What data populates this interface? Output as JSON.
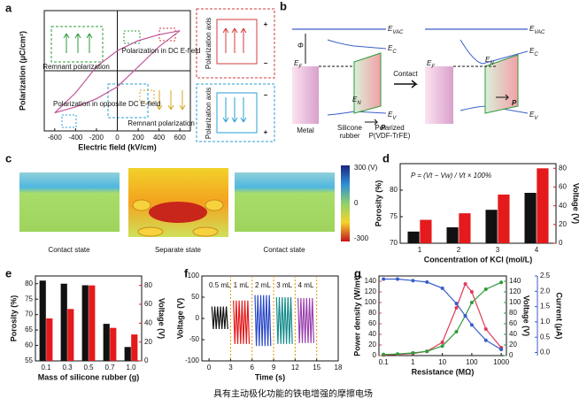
{
  "chart_data": [
    {
      "type": "line",
      "xlabel": "Electric field (kV/cm)",
      "ylabel": "Polarization (μC/cm²)",
      "xlim": [
        -700,
        700
      ],
      "ylim": [
        -1.5,
        1.5
      ],
      "xticks": [
        -600,
        -400,
        -200,
        0,
        200,
        400,
        600
      ],
      "series": [
        {
          "color": "#c0559a",
          "x": [
            -600,
            -400,
            -200,
            0,
            200,
            400,
            600,
            400,
            200,
            0,
            -200,
            -400,
            -600
          ],
          "values": [
            -1.05,
            -0.55,
            0.1,
            0.5,
            0.75,
            0.9,
            1.0,
            0.6,
            0.1,
            -0.4,
            -0.7,
            -0.9,
            -1.05
          ]
        }
      ],
      "annotations": [
        {
          "text": "Remnant polarization",
          "color": "#2e9b3a"
        },
        {
          "text": "Polarization in DC E-field",
          "color": "#d23c3c"
        },
        {
          "text": "Polarization in opposite DC E-field",
          "color": "#2a9fd6"
        },
        {
          "text": "Remnant polarization",
          "color": "#d4a520"
        }
      ]
    },
    {
      "type": "bar",
      "xlabel": "Concentration of KCl (mol/L)",
      "ylabel": "Porosity (%)",
      "y2label": "Voltage (V)",
      "annotation": "P = (Vt − Vw) / Vt × 100%",
      "categories": [
        "1",
        "2",
        "3",
        "4"
      ],
      "ylim": [
        70,
        85
      ],
      "yticks": [
        70,
        75,
        80
      ],
      "y2lim": [
        0,
        85
      ],
      "y2ticks": [
        0,
        20,
        40,
        60,
        80
      ],
      "series": [
        {
          "color": "#111111",
          "values": [
            72.2,
            73,
            76.3,
            79.5
          ]
        },
        {
          "color": "#e41a1c",
          "axis": "y2",
          "values": [
            25,
            32,
            52,
            80
          ]
        }
      ]
    },
    {
      "type": "bar",
      "xlabel": "Mass of silicone rubber (g)",
      "ylabel": "Porosity (%)",
      "y2label": "Voltage (V)",
      "categories": [
        "0.1",
        "0.3",
        "0.5",
        "0.7",
        "1.0"
      ],
      "ylim": [
        55,
        82.5
      ],
      "yticks": [
        55,
        60,
        65,
        70,
        75,
        80
      ],
      "y2lim": [
        0,
        90
      ],
      "y2ticks": [
        0,
        20,
        40,
        60,
        80
      ],
      "series": [
        {
          "color": "#111111",
          "values": [
            81,
            80,
            79.5,
            67,
            59.5
          ]
        },
        {
          "color": "#e41a1c",
          "axis": "y2",
          "values": [
            45,
            55,
            80,
            35,
            28
          ]
        }
      ]
    },
    {
      "type": "line",
      "xlabel": "Time (s)",
      "ylabel": "Voltage (V)",
      "xlim": [
        -1,
        18
      ],
      "ylim": [
        -100,
        100
      ],
      "xticks": [
        0,
        3,
        6,
        9,
        12,
        15,
        18
      ],
      "yticks": [
        -100,
        -50,
        0,
        50,
        100
      ],
      "label_color": "#e69500",
      "series": [
        {
          "name": "0.5 mL",
          "color": "#111111",
          "x": [
            0.4,
            0.6,
            0.8,
            1.0,
            1.2,
            1.4,
            1.6,
            1.8,
            2.0,
            2.2,
            2.4,
            2.6
          ],
          "values": [
            28,
            -25,
            28,
            -25,
            28,
            -25,
            28,
            -25,
            28,
            -25,
            28,
            -25
          ]
        },
        {
          "name": "1 mL",
          "color": "#e41a1c",
          "x": [
            3.4,
            3.6,
            3.8,
            4.0,
            4.2,
            4.4,
            4.6,
            4.8,
            5.0,
            5.2,
            5.4,
            5.6
          ],
          "values": [
            42,
            -60,
            42,
            -60,
            42,
            -60,
            42,
            -60,
            42,
            -60,
            42,
            -60
          ]
        },
        {
          "name": "2 mL",
          "color": "#2a49c9",
          "x": [
            6.4,
            6.6,
            6.8,
            7.0,
            7.2,
            7.4,
            7.6,
            7.8,
            8.0,
            8.2,
            8.4,
            8.6
          ],
          "values": [
            55,
            -65,
            55,
            -65,
            55,
            -65,
            55,
            -65,
            55,
            -65,
            55,
            -65
          ]
        },
        {
          "name": "3 mL",
          "color": "#138a8a",
          "x": [
            9.4,
            9.6,
            9.8,
            10.0,
            10.2,
            10.4,
            10.6,
            10.8,
            11.0,
            11.2,
            11.4,
            11.6
          ],
          "values": [
            50,
            -60,
            50,
            -60,
            50,
            -60,
            50,
            -60,
            50,
            -60,
            50,
            -60
          ]
        },
        {
          "name": "4 mL",
          "color": "#9b3fb0",
          "x": [
            12.4,
            12.6,
            12.8,
            13.0,
            13.2,
            13.4,
            13.6,
            13.8,
            14.0,
            14.2,
            14.4,
            14.6
          ],
          "values": [
            48,
            -58,
            48,
            -58,
            48,
            -58,
            48,
            -58,
            48,
            -58,
            48,
            -58
          ]
        }
      ]
    },
    {
      "type": "line",
      "xlabel": "Resistance (MΩ)",
      "ylabel": "Power density (W/m²)",
      "y2label": "Voltage (V)",
      "y3label": "Current (μA)",
      "xlog": true,
      "xlim": [
        0.07,
        1500
      ],
      "xticks": [
        0.1,
        1,
        10,
        100,
        1000
      ],
      "ylim": [
        0,
        150
      ],
      "yticks": [
        0,
        20,
        40,
        60,
        80,
        100,
        120,
        140
      ],
      "y2lim": [
        0,
        150
      ],
      "y2ticks": [
        0,
        20,
        40,
        60,
        80,
        100,
        120,
        140
      ],
      "y3lim": [
        -0.1,
        2.5
      ],
      "y3ticks": [
        {
          "value": 0,
          "label": "0.0"
        },
        {
          "value": 0.5,
          "label": "0.5"
        },
        {
          "value": 1,
          "label": "1.0"
        },
        {
          "value": 1.5,
          "label": "1.5"
        },
        {
          "value": 2,
          "label": "2.0"
        },
        2.5
      ],
      "x": [
        0.1,
        0.3,
        1,
        3,
        10,
        30,
        60,
        100,
        300,
        1000
      ],
      "series": [
        {
          "color": "#e03a5a",
          "values": [
            1,
            2,
            4,
            8,
            25,
            90,
            135,
            120,
            50,
            15
          ]
        },
        {
          "color": "#2e9b3a",
          "axis": "y2",
          "values": [
            2,
            3,
            5,
            8,
            18,
            45,
            75,
            100,
            125,
            138
          ]
        },
        {
          "color": "#3a5ec9",
          "axis": "y3",
          "values": [
            2.4,
            2.4,
            2.35,
            2.3,
            2.1,
            1.6,
            1.2,
            0.9,
            0.4,
            0.1
          ]
        }
      ]
    }
  ],
  "panel_labels": [
    "a",
    "b",
    "c",
    "d",
    "e",
    "f",
    "g"
  ],
  "panel_a_insets": {
    "axis_labels": [
      "Polarization axis",
      "Polarization axis"
    ],
    "signs": [
      "+",
      "−",
      "−",
      "+"
    ]
  },
  "panel_b": {
    "energy_labels": [
      {
        "main": "E",
        "sub": "VAC"
      },
      {
        "main": "E",
        "sub": "C"
      },
      {
        "main": "E",
        "sub": "F"
      },
      {
        "main": "E",
        "sub": "N"
      },
      {
        "main": "E",
        "sub": "V"
      },
      {
        "main": "E",
        "sub": "VAC"
      },
      {
        "main": "E",
        "sub": "C"
      },
      {
        "main": "E",
        "sub": "F"
      },
      {
        "main": "E",
        "sub": "N"
      },
      {
        "main": "E",
        "sub": "V"
      }
    ],
    "phi": "Φ",
    "p_labels": [
      "P",
      "P"
    ],
    "arrow_label": "Contact",
    "materials": [
      [
        "Metal"
      ],
      [
        "Silicone",
        "rubber"
      ],
      [
        "Polarized",
        "P(VDF-TrFE)"
      ]
    ]
  },
  "panel_c": {
    "colorbar_labels": [
      "300 (V)",
      "0",
      "-300"
    ],
    "states": [
      "Contact state",
      "Separate state",
      "Contact state"
    ]
  },
  "caption": "具有主动极化功能的铁电增强的摩擦电场"
}
